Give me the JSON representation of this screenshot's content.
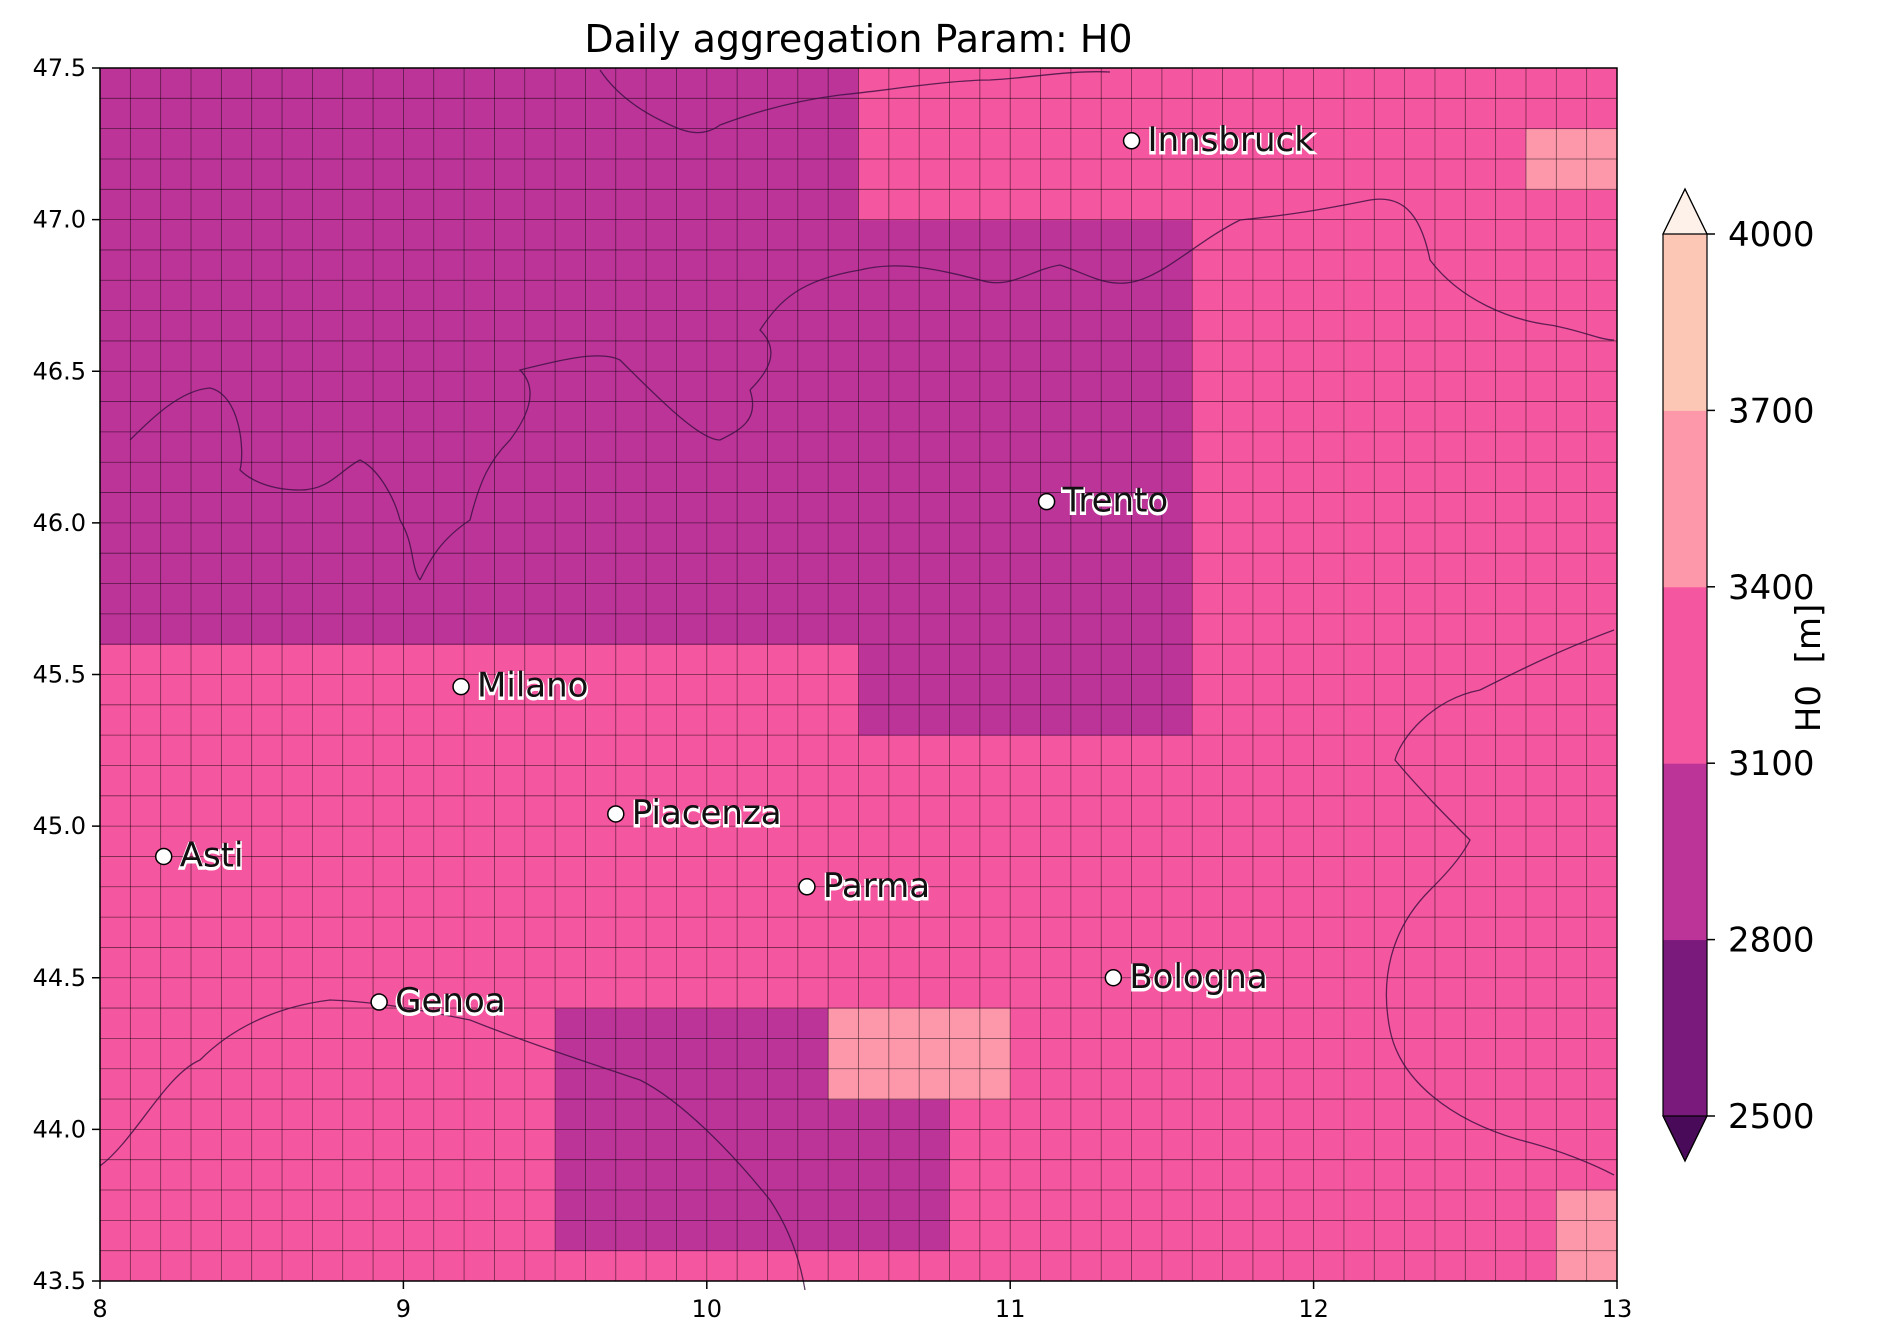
{
  "title": "Daily aggregation Param: H0",
  "colorbar": {
    "label": "H0  [m]",
    "levels": [
      2500,
      2800,
      3100,
      3400,
      3700,
      4000
    ],
    "tick_labels": [
      "2500",
      "2800",
      "3100",
      "3400",
      "3700",
      "4000"
    ],
    "colors": [
      "#7a1a7d",
      "#bd3499",
      "#f556a0",
      "#fd97aa",
      "#fdc7b6"
    ],
    "under_color": "#4a0a5a",
    "over_color": "#fdf1ea",
    "extend": "both"
  },
  "axes": {
    "x_ticks": [
      "8",
      "9",
      "10",
      "11",
      "12",
      "13"
    ],
    "y_ticks": [
      "43.5",
      "44.0",
      "44.5",
      "45.0",
      "45.5",
      "46.0",
      "46.5",
      "47.0",
      "47.5"
    ],
    "xlim": [
      8,
      13
    ],
    "ylim": [
      43.5,
      47.5
    ]
  },
  "cities": [
    {
      "name": "Innsbruck",
      "lon": 11.4,
      "lat": 47.26
    },
    {
      "name": "Trento",
      "lon": 11.12,
      "lat": 46.07
    },
    {
      "name": "Milano",
      "lon": 9.19,
      "lat": 45.46
    },
    {
      "name": "Piacenza",
      "lon": 9.7,
      "lat": 45.04
    },
    {
      "name": "Asti",
      "lon": 8.21,
      "lat": 44.9
    },
    {
      "name": "Parma",
      "lon": 10.33,
      "lat": 44.8
    },
    {
      "name": "Genoa",
      "lon": 8.92,
      "lat": 44.42
    },
    {
      "name": "Bologna",
      "lon": 11.34,
      "lat": 44.5
    }
  ],
  "chart_data": {
    "type": "heatmap",
    "title": "Daily aggregation Param: H0",
    "xlabel": "",
    "ylabel": "",
    "xlim": [
      8,
      13
    ],
    "ylim": [
      43.5,
      47.5
    ],
    "x_range": [
      8,
      13
    ],
    "y_range": [
      43.5,
      47.5
    ],
    "value_label": "H0  [m]",
    "levels": [
      2500,
      2800,
      3100,
      3400,
      3700,
      4000
    ],
    "dominant_value_m": 3250,
    "regions": [
      {
        "description": "NW Alps block",
        "lon": [
          8.0,
          10.5
        ],
        "lat": [
          45.6,
          47.5
        ],
        "value_m": 2950
      },
      {
        "description": "Central Alps",
        "lon": [
          10.5,
          11.6
        ],
        "lat": [
          45.3,
          47.0
        ],
        "value_m": 2950
      },
      {
        "description": "Ligurian Apennines",
        "lon": [
          9.5,
          10.8
        ],
        "lat": [
          43.6,
          44.4
        ],
        "value_m": 2950
      },
      {
        "description": "warm patch NE Apennines",
        "lon": [
          10.4,
          11.0
        ],
        "lat": [
          44.1,
          44.4
        ],
        "value_m": 3550
      },
      {
        "description": "Austria east",
        "lon": [
          12.7,
          13.0
        ],
        "lat": [
          47.1,
          47.3
        ],
        "value_m": 3550
      },
      {
        "description": "SE corner",
        "lon": [
          12.8,
          13.0
        ],
        "lat": [
          43.5,
          43.8
        ],
        "value_m": 3550
      }
    ]
  }
}
